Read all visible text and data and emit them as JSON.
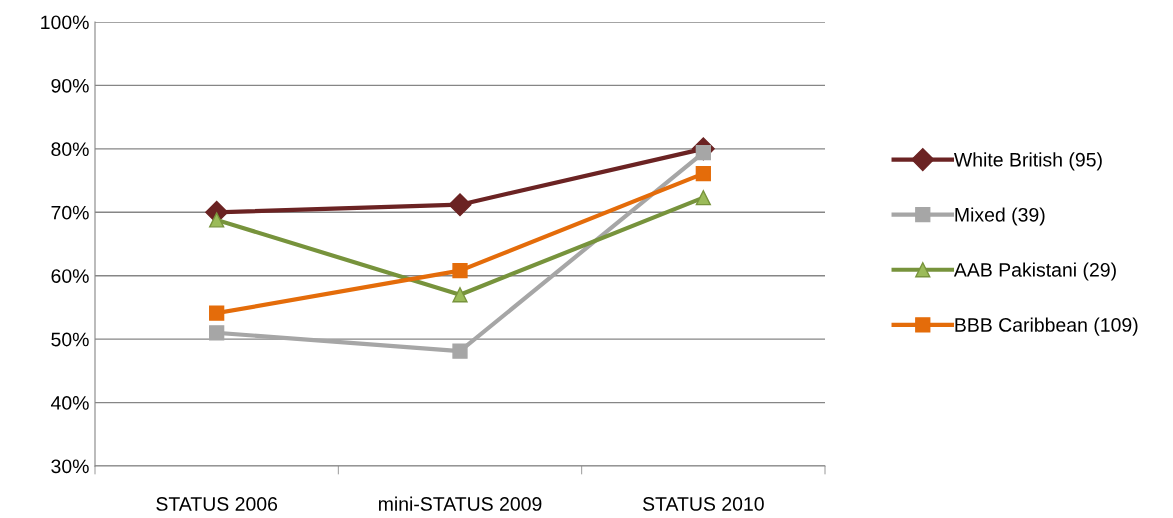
{
  "chart_data": {
    "type": "line",
    "categories": [
      "STATUS 2006",
      "mini-STATUS 2009",
      "STATUS 2010"
    ],
    "series": [
      {
        "name": "White British (95)",
        "color": "#6b2323",
        "marker": "diamond",
        "values": [
          70,
          71.2,
          80
        ]
      },
      {
        "name": "Mixed (39)",
        "color": "#a6a6a6",
        "marker": "square",
        "values": [
          51,
          48.1,
          79.4
        ]
      },
      {
        "name": "AAB Pakistani (29)",
        "color": "#77933c",
        "marker": "triangle",
        "values": [
          68.8,
          57,
          72.3
        ]
      },
      {
        "name": "BBB Caribbean (109)",
        "color": "#e46c0a",
        "marker": "square",
        "values": [
          54.1,
          60.8,
          76.1
        ]
      }
    ],
    "ylim": [
      30,
      100
    ],
    "yticks": [
      {
        "value": 30,
        "label": "30%"
      },
      {
        "value": 40,
        "label": "40%"
      },
      {
        "value": 50,
        "label": "50%"
      },
      {
        "value": 60,
        "label": "60%"
      },
      {
        "value": 70,
        "label": "70%"
      },
      {
        "value": 80,
        "label": "80%"
      },
      {
        "value": 90,
        "label": "90%"
      },
      {
        "value": 100,
        "label": "100%"
      }
    ],
    "grid": "y",
    "legend": "right",
    "line_style": "solid"
  }
}
